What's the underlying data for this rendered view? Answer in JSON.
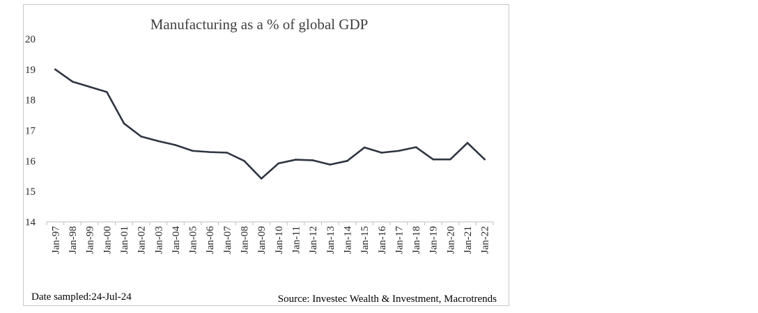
{
  "chart_data": {
    "type": "line",
    "title": "Manufacturing as a % of global GDP",
    "xlabel": "",
    "ylabel": "",
    "ylim": [
      14,
      20
    ],
    "yticks": [
      14,
      15,
      16,
      17,
      18,
      19,
      20
    ],
    "grid": false,
    "legend": "none",
    "categories": [
      "Jan-97",
      "Jan-98",
      "Jan-99",
      "Jan-00",
      "Jan-01",
      "Jan-02",
      "Jan-03",
      "Jan-04",
      "Jan-05",
      "Jan-06",
      "Jan-07",
      "Jan-08",
      "Jan-09",
      "Jan-10",
      "Jan-11",
      "Jan-12",
      "Jan-13",
      "Jan-14",
      "Jan-15",
      "Jan-16",
      "Jan-17",
      "Jan-18",
      "Jan-19",
      "Jan-20",
      "Jan-21",
      "Jan-22"
    ],
    "series": [
      {
        "name": "Manufacturing % of global GDP",
        "color": "#2e3440",
        "values": [
          19.0,
          18.6,
          18.43,
          18.26,
          17.23,
          16.8,
          16.65,
          16.52,
          16.33,
          16.29,
          16.27,
          16.0,
          15.42,
          15.92,
          16.04,
          16.02,
          15.88,
          16.0,
          16.44,
          16.27,
          16.33,
          16.45,
          16.05,
          16.05,
          16.59,
          16.05
        ]
      }
    ]
  },
  "footer": {
    "date_sampled": "Date sampled:24-Jul-24",
    "source": "Source: Investec Wealth  & Investment,  Macrotrends"
  }
}
